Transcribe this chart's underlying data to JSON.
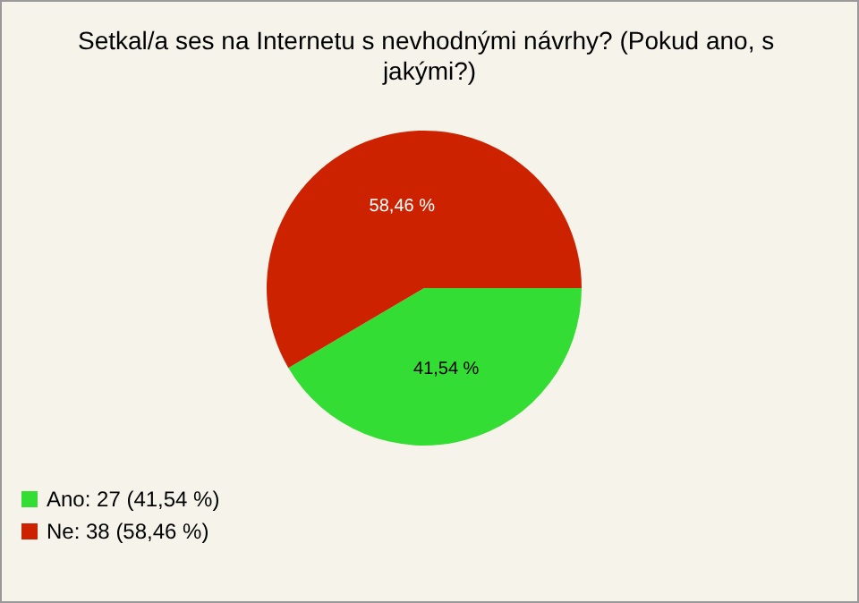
{
  "chart_data": {
    "type": "pie",
    "title": "Setkal/a ses na Internetu s nevhodnými návrhy? (Pokud ano, s jakými?)",
    "categories": [
      "Ano: 27 (41,54 %)",
      "Ne: 38 (58,46 %)"
    ],
    "values": [
      41.54,
      58.46
    ],
    "colors": [
      "#33dd33",
      "#cc2200"
    ],
    "value_labels": [
      "41,54 %",
      "58,46 %"
    ],
    "legend": "bottom left"
  }
}
